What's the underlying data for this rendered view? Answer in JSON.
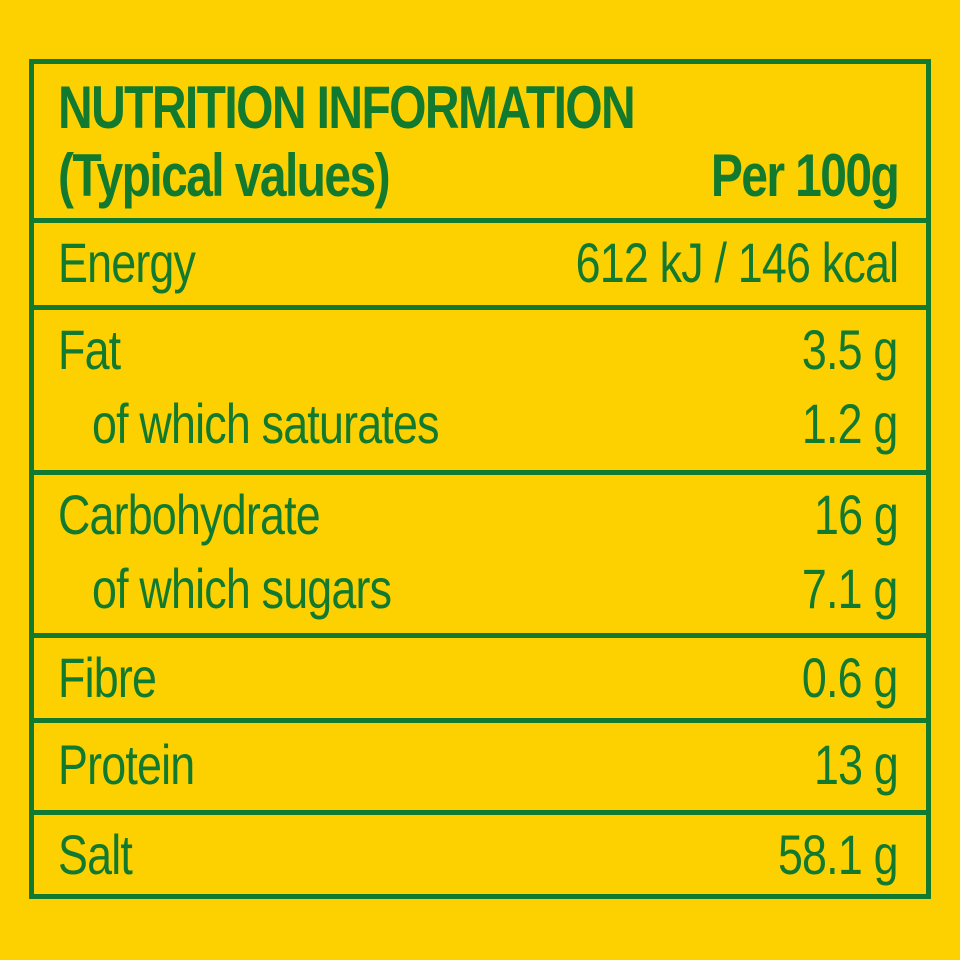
{
  "colors": {
    "background": "#fdd000",
    "text": "#127a2e"
  },
  "header": {
    "title": "NUTRITION INFORMATION",
    "subtitle": "(Typical values)",
    "column": "Per 100g"
  },
  "rows": [
    {
      "label": "Energy",
      "value": "612 kJ / 146 kcal"
    },
    {
      "label": "Fat",
      "value": "3.5 g"
    },
    {
      "label": "of which saturates",
      "value": "1.2 g"
    },
    {
      "label": "Carbohydrate",
      "value": "16 g"
    },
    {
      "label": "of which sugars",
      "value": "7.1 g"
    },
    {
      "label": "Fibre",
      "value": "0.6 g"
    },
    {
      "label": "Protein",
      "value": "13 g"
    },
    {
      "label": "Salt",
      "value": "58.1 g"
    }
  ]
}
